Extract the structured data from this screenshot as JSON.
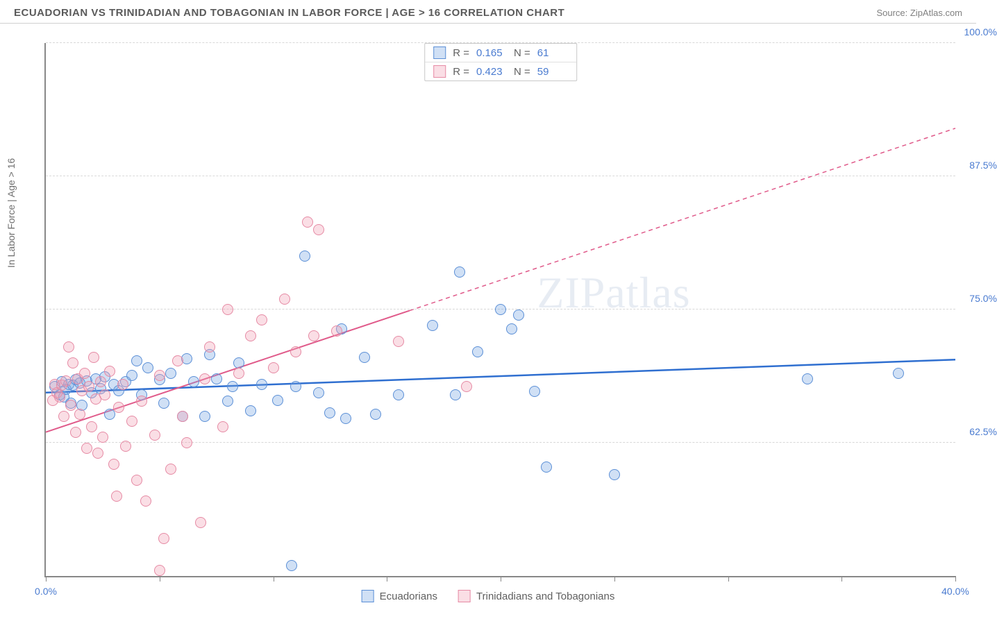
{
  "title": "ECUADORIAN VS TRINIDADIAN AND TOBAGONIAN IN LABOR FORCE | AGE > 16 CORRELATION CHART",
  "source": "Source: ZipAtlas.com",
  "ylabel": "In Labor Force | Age > 16",
  "watermark": "ZIPatlas",
  "chart": {
    "type": "scatter",
    "xlim": [
      0,
      40
    ],
    "ylim": [
      50,
      100
    ],
    "x_ticks": [
      0,
      5,
      10,
      15,
      20,
      25,
      30,
      35,
      40
    ],
    "x_tick_labels": {
      "0": "0.0%",
      "40": "40.0%"
    },
    "y_gridlines": [
      62.5,
      75,
      87.5,
      100
    ],
    "y_tick_labels": {
      "62.5": "62.5%",
      "75": "75.0%",
      "87.5": "87.5%",
      "100": "100.0%"
    },
    "grid_color": "#d8d8d8",
    "background_color": "#ffffff",
    "marker_radius": 8,
    "series": [
      {
        "name": "Ecuadorians",
        "fill": "rgba(120,165,225,0.35)",
        "stroke": "#5b8fd6",
        "r_value": "0.165",
        "n_value": "61",
        "trend": {
          "x1": 0,
          "y1": 67.2,
          "x2": 40,
          "y2": 70.3,
          "solid_until_x": 40,
          "color": "#2f6fd0",
          "width": 2.5
        },
        "points": [
          [
            0.4,
            67.8
          ],
          [
            0.6,
            67.0
          ],
          [
            0.7,
            68.2
          ],
          [
            0.8,
            66.8
          ],
          [
            0.9,
            67.5
          ],
          [
            1.0,
            68.0
          ],
          [
            1.1,
            66.2
          ],
          [
            1.2,
            67.9
          ],
          [
            1.3,
            68.4
          ],
          [
            1.5,
            68.1
          ],
          [
            1.6,
            66.0
          ],
          [
            1.8,
            68.3
          ],
          [
            2.0,
            67.2
          ],
          [
            2.2,
            68.5
          ],
          [
            2.4,
            67.6
          ],
          [
            2.6,
            68.7
          ],
          [
            2.8,
            65.2
          ],
          [
            3.0,
            68.0
          ],
          [
            3.2,
            67.4
          ],
          [
            3.5,
            68.2
          ],
          [
            3.8,
            68.8
          ],
          [
            4.0,
            70.2
          ],
          [
            4.2,
            67.0
          ],
          [
            4.5,
            69.5
          ],
          [
            5.0,
            68.4
          ],
          [
            5.2,
            66.2
          ],
          [
            5.5,
            69.0
          ],
          [
            6.0,
            65.0
          ],
          [
            6.2,
            70.4
          ],
          [
            6.5,
            68.2
          ],
          [
            7.0,
            65.0
          ],
          [
            7.2,
            70.8
          ],
          [
            7.5,
            68.5
          ],
          [
            8.0,
            66.4
          ],
          [
            8.2,
            67.8
          ],
          [
            8.5,
            70.0
          ],
          [
            9.0,
            65.5
          ],
          [
            9.5,
            68.0
          ],
          [
            10.2,
            66.5
          ],
          [
            10.8,
            51.0
          ],
          [
            11.0,
            67.8
          ],
          [
            11.4,
            80.0
          ],
          [
            12.0,
            67.2
          ],
          [
            12.5,
            65.3
          ],
          [
            13.0,
            73.2
          ],
          [
            13.2,
            64.8
          ],
          [
            14.0,
            70.5
          ],
          [
            14.5,
            65.2
          ],
          [
            15.5,
            67.0
          ],
          [
            17.0,
            73.5
          ],
          [
            18.0,
            67.0
          ],
          [
            18.2,
            78.5
          ],
          [
            19.0,
            71.0
          ],
          [
            20.0,
            75.0
          ],
          [
            20.5,
            73.2
          ],
          [
            20.8,
            74.5
          ],
          [
            21.5,
            67.3
          ],
          [
            22.0,
            60.2
          ],
          [
            25.0,
            59.5
          ],
          [
            33.5,
            68.5
          ],
          [
            37.5,
            69.0
          ]
        ]
      },
      {
        "name": "Trinidadians and Tobagonians",
        "fill": "rgba(240,160,180,0.35)",
        "stroke": "#e68aa4",
        "r_value": "0.423",
        "n_value": "59",
        "trend": {
          "x1": 0,
          "y1": 63.5,
          "x2": 40,
          "y2": 92.0,
          "solid_until_x": 16,
          "color": "#e05a8a",
          "width": 2
        },
        "points": [
          [
            0.3,
            66.5
          ],
          [
            0.4,
            68.0
          ],
          [
            0.5,
            67.2
          ],
          [
            0.6,
            66.8
          ],
          [
            0.7,
            67.9
          ],
          [
            0.8,
            65.0
          ],
          [
            0.9,
            68.3
          ],
          [
            1.0,
            71.5
          ],
          [
            1.1,
            66.0
          ],
          [
            1.2,
            70.0
          ],
          [
            1.3,
            63.5
          ],
          [
            1.4,
            68.5
          ],
          [
            1.5,
            65.2
          ],
          [
            1.6,
            67.4
          ],
          [
            1.7,
            69.0
          ],
          [
            1.8,
            62.0
          ],
          [
            1.9,
            67.8
          ],
          [
            2.0,
            64.0
          ],
          [
            2.1,
            70.5
          ],
          [
            2.2,
            66.6
          ],
          [
            2.3,
            61.5
          ],
          [
            2.4,
            68.2
          ],
          [
            2.5,
            63.0
          ],
          [
            2.6,
            67.0
          ],
          [
            2.8,
            69.2
          ],
          [
            3.0,
            60.5
          ],
          [
            3.1,
            57.5
          ],
          [
            3.2,
            65.8
          ],
          [
            3.4,
            68.0
          ],
          [
            3.5,
            62.2
          ],
          [
            3.8,
            64.5
          ],
          [
            4.0,
            59.0
          ],
          [
            4.2,
            66.4
          ],
          [
            4.4,
            57.0
          ],
          [
            4.8,
            63.2
          ],
          [
            5.0,
            68.8
          ],
          [
            5.0,
            50.5
          ],
          [
            5.2,
            53.5
          ],
          [
            5.5,
            60.0
          ],
          [
            5.8,
            70.2
          ],
          [
            6.0,
            65.0
          ],
          [
            6.2,
            62.5
          ],
          [
            6.8,
            55.0
          ],
          [
            7.0,
            68.5
          ],
          [
            7.2,
            71.5
          ],
          [
            7.8,
            64.0
          ],
          [
            8.0,
            75.0
          ],
          [
            8.5,
            69.0
          ],
          [
            9.0,
            72.5
          ],
          [
            9.5,
            74.0
          ],
          [
            10.0,
            69.5
          ],
          [
            10.5,
            76.0
          ],
          [
            11.0,
            71.0
          ],
          [
            11.5,
            83.2
          ],
          [
            11.8,
            72.5
          ],
          [
            12.0,
            82.5
          ],
          [
            12.8,
            73.0
          ],
          [
            15.5,
            72.0
          ],
          [
            18.5,
            67.8
          ]
        ]
      }
    ]
  },
  "legend_bottom": [
    {
      "label": "Ecuadorians",
      "fill": "rgba(120,165,225,0.35)",
      "stroke": "#5b8fd6"
    },
    {
      "label": "Trinidadians and Tobagonians",
      "fill": "rgba(240,160,180,0.35)",
      "stroke": "#e68aa4"
    }
  ]
}
